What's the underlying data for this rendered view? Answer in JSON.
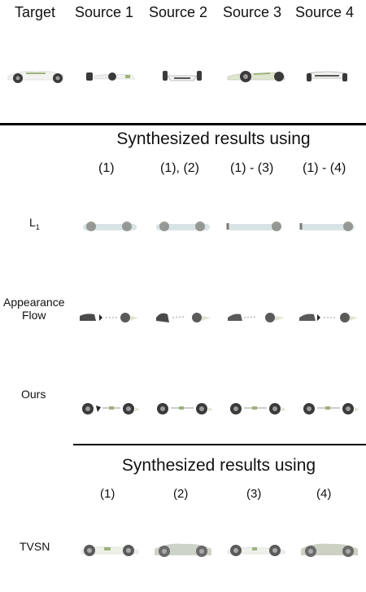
{
  "header": {
    "labels": [
      "Target",
      "Source 1",
      "Source 2",
      "Source 3",
      "Source 4"
    ]
  },
  "section_top": {
    "title": "Synthesized results using",
    "columns": [
      "(1)",
      "(1), (2)",
      "(1) - (3)",
      "(1) - (4)"
    ],
    "rows": [
      {
        "label": "L",
        "subscript": "1"
      },
      {
        "label": "Appearance\nFlow"
      },
      {
        "label": "Ours"
      }
    ]
  },
  "section_bottom": {
    "title": "Synthesized results using",
    "columns": [
      "(1)",
      "(2)",
      "(3)",
      "(4)"
    ],
    "rows": [
      {
        "label": "TVSN"
      }
    ]
  },
  "colors": {
    "rule": "#000000",
    "car_body": "#f2f3f1",
    "car_accent": "#9fb37a",
    "wheel": "#3a3a3a",
    "blur_body": "#cfd8d8"
  }
}
